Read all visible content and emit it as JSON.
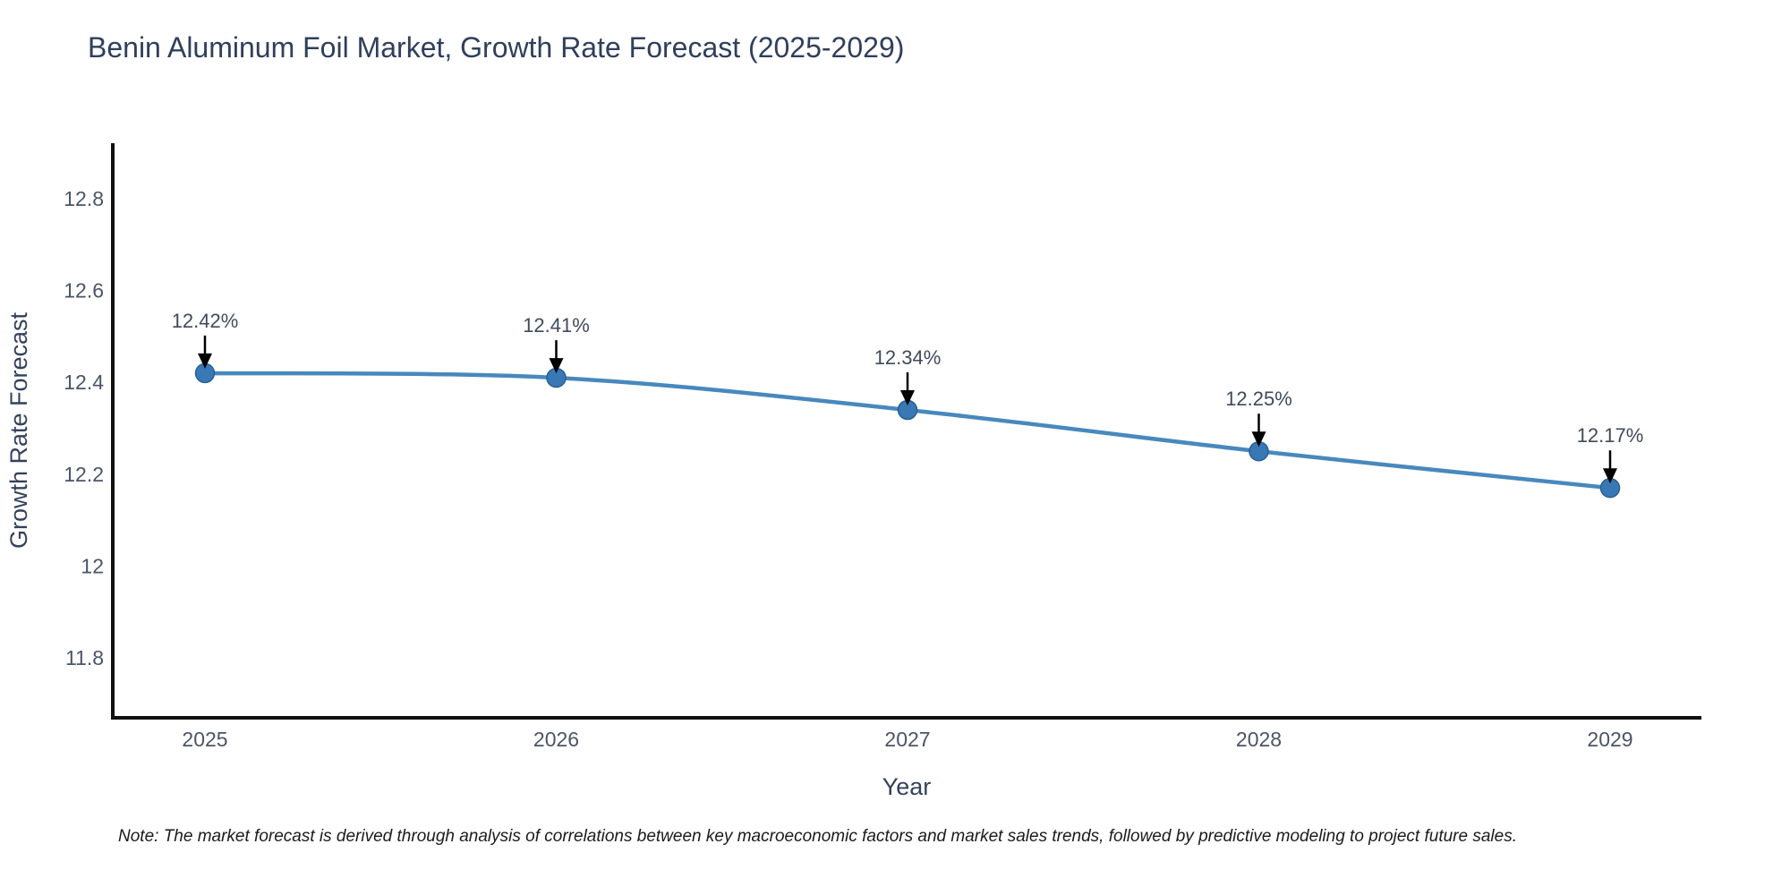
{
  "title": "Benin Aluminum Foil Market, Growth Rate Forecast (2025-2029)",
  "note": "Note: The market forecast is derived through analysis of correlations between key macroeconomic factors and market sales trends, followed by predictive modeling to project future sales.",
  "chart_data": {
    "type": "line",
    "title": "Benin Aluminum Foil Market, Growth Rate Forecast (2025-2029)",
    "xlabel": "Year",
    "ylabel": "Growth Rate Forecast",
    "categories": [
      "2025",
      "2026",
      "2027",
      "2028",
      "2029"
    ],
    "series": [
      {
        "name": "Growth Rate Forecast",
        "values": [
          12.42,
          12.41,
          12.34,
          12.25,
          12.17
        ]
      }
    ],
    "point_labels": [
      "12.42%",
      "12.41%",
      "12.34%",
      "12.25%",
      "12.17%"
    ],
    "y_ticks": [
      11.8,
      12.0,
      12.2,
      12.4,
      12.6,
      12.8
    ],
    "y_tick_labels": [
      "11.8",
      "12",
      "12.2",
      "12.4",
      "12.6",
      "12.8"
    ],
    "ylim": [
      11.67,
      12.92
    ],
    "grid": false,
    "legend_position": "none",
    "line_shape": "spline",
    "colors": {
      "line": "#4888bd",
      "marker": "#3878b4",
      "marker_edge": "#2b5f93",
      "axis": "#111111",
      "title_text": "#2f3f5c",
      "tick_text": "#4a5566",
      "annotation_text": "#3f4a5a",
      "annotation_arrow": "#000000",
      "note_text": "#1b1b1b",
      "background": "#ffffff"
    }
  }
}
